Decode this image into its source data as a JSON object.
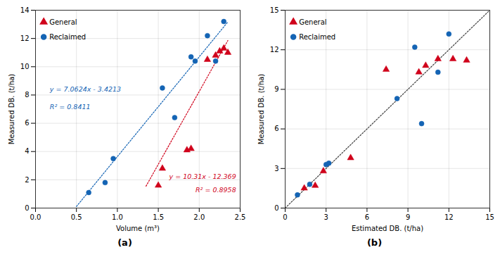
{
  "chart_data": [
    {
      "type": "scatter",
      "title": "(a)",
      "xlabel": "Volume (m³)",
      "ylabel": "Measured DB. (t/ha)",
      "xlim": [
        0,
        2.5
      ],
      "ylim": [
        0,
        14
      ],
      "xticks": [
        {
          "value": 0,
          "label": "0.0"
        },
        0.5,
        {
          "value": 1.0,
          "label": "1.0"
        },
        1.5,
        {
          "value": 2.0,
          "label": "2.0"
        },
        2.5
      ],
      "yticks": [
        0,
        2,
        4,
        6,
        8,
        10,
        12,
        14
      ],
      "grid": true,
      "legend": "upper left",
      "series": [
        {
          "name": "General",
          "type": "scatter",
          "marker": "triangle",
          "color": "#d0021b",
          "x": [
            1.5,
            1.55,
            1.85,
            1.9,
            2.1,
            2.2,
            2.25,
            2.3,
            2.35
          ],
          "values": [
            1.6,
            2.8,
            4.1,
            4.2,
            10.5,
            10.8,
            11.1,
            11.3,
            11.0
          ]
        },
        {
          "name": "Reclaimed",
          "type": "scatter",
          "marker": "circle",
          "color": "#1464b4",
          "x": [
            0.65,
            0.85,
            0.95,
            1.55,
            1.7,
            1.9,
            1.95,
            2.1,
            2.2,
            2.3
          ],
          "values": [
            1.1,
            1.8,
            3.5,
            8.5,
            6.4,
            10.7,
            10.4,
            12.2,
            10.4,
            13.2
          ]
        },
        {
          "type": "line",
          "line_style": "dotted",
          "color": "#1464b4",
          "x": [
            0.5,
            2.35
          ],
          "values": [
            0.1099,
            13.17534
          ]
        },
        {
          "type": "line",
          "line_style": "dotted",
          "color": "#d0021b",
          "x": [
            1.35,
            2.35
          ],
          "values": [
            1.5495,
            11.8595
          ]
        }
      ],
      "annotations": [
        {
          "text": "y = 7.0624x - 3.4213",
          "color": "#1464b4"
        },
        {
          "text": "R² = 0.8411",
          "color": "#1464b4"
        },
        {
          "text": "y = 10.31x - 12.369",
          "color": "#d0021b"
        },
        {
          "text": "R² = 0.8958",
          "color": "#d0021b"
        }
      ]
    },
    {
      "type": "scatter",
      "title": "(b)",
      "xlabel": "Estimated DB. (t/ha)",
      "ylabel": "Measured DB. (t/ha)",
      "xlim": [
        0,
        15
      ],
      "ylim": [
        0,
        15
      ],
      "xticks": [
        0,
        3,
        6,
        9,
        12,
        15
      ],
      "yticks": [
        0,
        3,
        6,
        9,
        12,
        15
      ],
      "grid": true,
      "legend": "upper left",
      "series": [
        {
          "name": "General",
          "type": "scatter",
          "marker": "triangle",
          "color": "#d0021b",
          "x": [
            1.4,
            2.2,
            2.8,
            4.8,
            7.4,
            9.8,
            10.3,
            11.2,
            12.3,
            13.3
          ],
          "values": [
            1.5,
            1.7,
            2.8,
            3.8,
            10.5,
            10.3,
            10.8,
            11.3,
            11.3,
            11.2
          ]
        },
        {
          "name": "Reclaimed",
          "type": "scatter",
          "marker": "circle",
          "color": "#1464b4",
          "x": [
            0.9,
            1.8,
            3.0,
            3.2,
            8.2,
            9.5,
            10.0,
            11.2,
            12.0
          ],
          "values": [
            1.0,
            1.8,
            3.3,
            3.4,
            8.3,
            12.2,
            6.4,
            10.3,
            13.2
          ]
        },
        {
          "type": "line",
          "line_style": "dotted",
          "color": "#404040",
          "x": [
            0,
            15
          ],
          "values": [
            0,
            15
          ]
        }
      ]
    }
  ]
}
